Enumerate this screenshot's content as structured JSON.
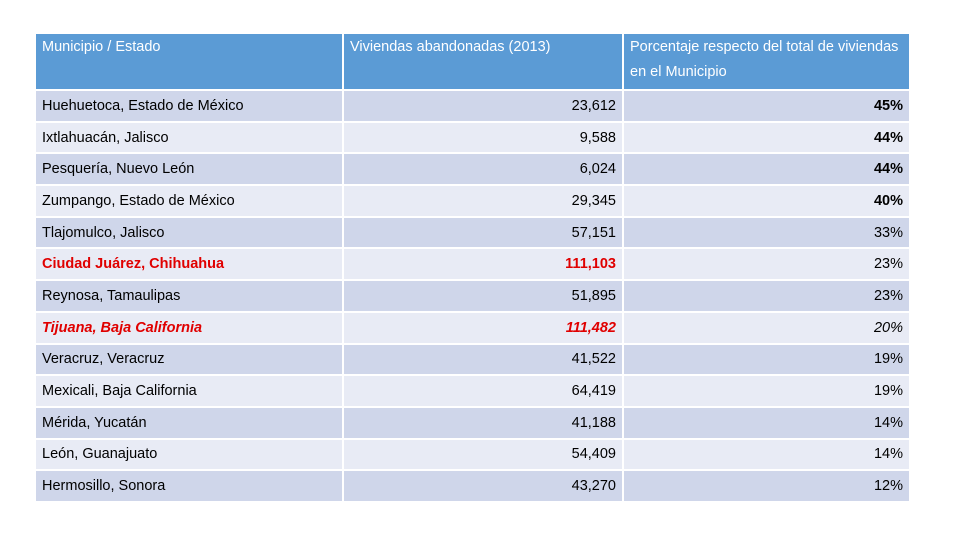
{
  "table": {
    "header": [
      "Municipio / Estado",
      "Viviendas abandonadas (2013)",
      "Porcentaje respecto del total de viviendas en el Municipio"
    ],
    "rows": [
      [
        "Huehuetoca, Estado de México",
        "23,612",
        "45%"
      ],
      [
        "Ixtlahuacán, Jalisco",
        "9,588",
        "44%"
      ],
      [
        "Pesquería, Nuevo León",
        "6,024",
        "44%"
      ],
      [
        "Zumpango, Estado de México",
        "29,345",
        "40%"
      ],
      [
        "Tlajomulco, Jalisco",
        "57,151",
        "33%"
      ],
      [
        "Ciudad Juárez, Chihuahua",
        "111,103",
        "23%"
      ],
      [
        "Reynosa, Tamaulipas",
        "51,895",
        "23%"
      ],
      [
        "Tijuana, Baja California",
        "111,482",
        "20%"
      ],
      [
        "Veracruz, Veracruz",
        "41,522",
        "19%"
      ],
      [
        "Mexicali, Baja California",
        "64,419",
        "19%"
      ],
      [
        "Mérida, Yucatán",
        "41,188",
        "14%"
      ],
      [
        "León, Guanajuato",
        "54,409",
        "14%"
      ],
      [
        "Hermosillo, Sonora",
        "43,270",
        "12%"
      ]
    ]
  }
}
